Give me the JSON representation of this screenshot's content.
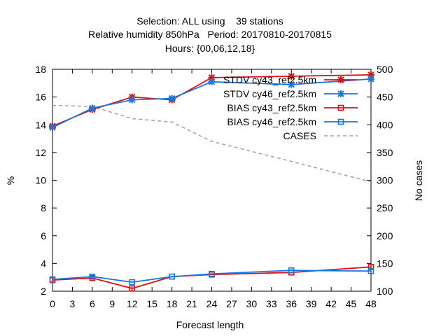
{
  "chart_data": {
    "type": "line",
    "title_lines": [
      "Selection: ALL using    39 stations",
      "Relative humidity 850hPa   Period: 20170810-20170815",
      "Hours: {00,06,12,18}"
    ],
    "xlabel": "Forecast length",
    "ylabel": "%",
    "y2label": "No cases",
    "xlim": [
      0,
      48
    ],
    "ylim": [
      2,
      18
    ],
    "y2lim": [
      100,
      500
    ],
    "xticks": [
      0,
      3,
      6,
      9,
      12,
      15,
      18,
      21,
      24,
      27,
      30,
      33,
      36,
      39,
      42,
      45,
      48
    ],
    "yticks": [
      2,
      4,
      6,
      8,
      10,
      12,
      14,
      16,
      18
    ],
    "y2ticks": [
      100,
      150,
      200,
      250,
      300,
      350,
      400,
      450,
      500
    ],
    "x": [
      0,
      6,
      12,
      18,
      24,
      36,
      48
    ],
    "legend_position": "top-right",
    "grid": false,
    "series": [
      {
        "name": "STDV cy43_ref2.5km",
        "color": "#e01010",
        "marker": "star",
        "axis": "y",
        "values": [
          13.9,
          15.1,
          16.0,
          15.8,
          17.4,
          17.5,
          17.6
        ]
      },
      {
        "name": "STDV cy46_ref2.5km",
        "color": "#1878e0",
        "marker": "star",
        "axis": "y",
        "values": [
          13.8,
          15.2,
          15.8,
          15.9,
          17.1,
          16.9,
          17.3
        ]
      },
      {
        "name": "BIAS cy43_ref2.5km",
        "color": "#e01010",
        "marker": "square",
        "axis": "y",
        "values": [
          2.8,
          2.95,
          2.2,
          3.05,
          3.2,
          3.35,
          3.75
        ]
      },
      {
        "name": "BIAS cy46_ref2.5km",
        "color": "#1878e0",
        "marker": "square",
        "axis": "y",
        "values": [
          2.85,
          3.05,
          2.65,
          3.05,
          3.25,
          3.5,
          3.45
        ]
      }
    ],
    "cases": {
      "name": "CASES",
      "color": "#a0a0a0",
      "axis": "y2",
      "x": [
        0,
        6,
        12,
        18,
        24,
        36,
        48
      ],
      "values": [
        435,
        433,
        411,
        405,
        370,
        334,
        297
      ]
    }
  }
}
